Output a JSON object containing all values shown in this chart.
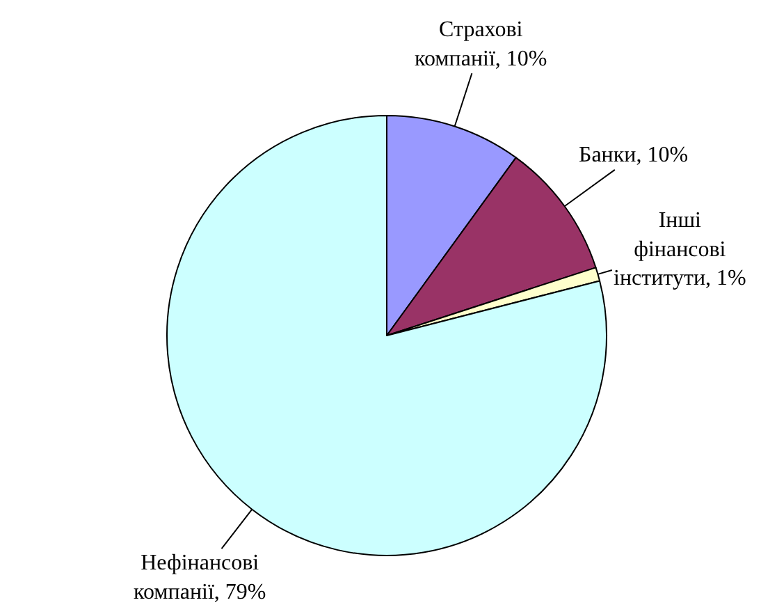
{
  "chart_data": {
    "type": "pie",
    "categories": [
      "Страхові компанії",
      "Банки",
      "Інші фінансові інститути",
      "Нефінансові компанії"
    ],
    "values": [
      10,
      10,
      1,
      79
    ],
    "colors": [
      "#9999ff",
      "#993366",
      "#ffffcc",
      "#ccffff"
    ],
    "value_labels": [
      "10%",
      "10%",
      "1%",
      "79%"
    ],
    "legend": false
  }
}
